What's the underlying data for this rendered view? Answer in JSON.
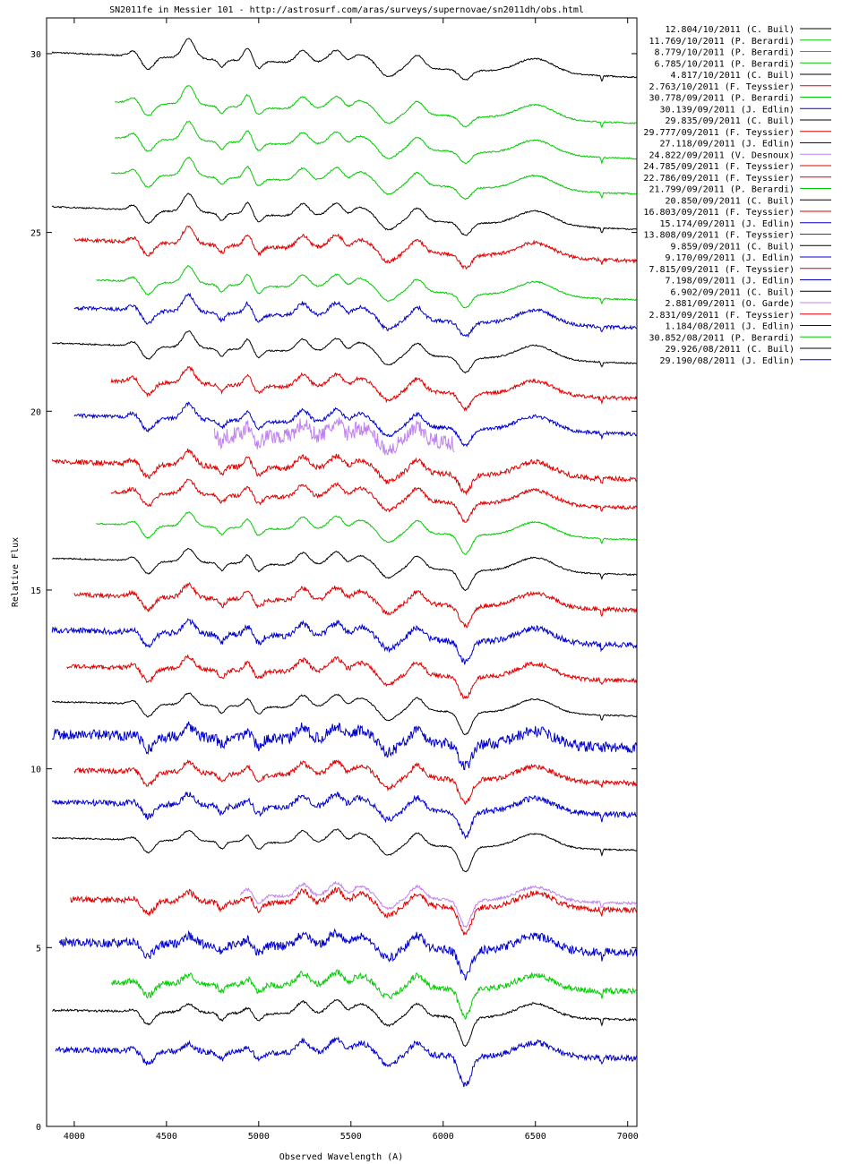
{
  "chart_data": {
    "type": "line",
    "title": "SN2011fe in Messier 101  -  http://astrosurf.com/aras/surveys/supernovae/sn2011dh/obs.html",
    "xlabel": "Observed Wavelength (A)",
    "ylabel": "Relative Flux",
    "xlim": [
      3850,
      7050
    ],
    "ylim": [
      0,
      31
    ],
    "x_ticks": [
      4000,
      4500,
      5000,
      5500,
      6000,
      6500,
      7000
    ],
    "y_ticks": [
      0,
      5,
      10,
      15,
      20,
      25,
      30
    ],
    "grid": false,
    "legend_position": "outside-top-right",
    "colors": {
      "black": "#000000",
      "green": "#00cc00",
      "red": "#e00000",
      "blue": "#0000cc",
      "violet": "#c080f0"
    },
    "series": [
      {
        "name": "12.804/10/2011 (C. Buil)",
        "color": "#000000",
        "offset": 29.7,
        "x_start": 3880,
        "x_end": 7050,
        "noise": 0.02
      },
      {
        "name": "11.769/10/2011 (P. Berardi)",
        "color": "#00cc00",
        "offset": 28.4,
        "x_start": 4220,
        "x_end": 7050,
        "noise": 0.02
      },
      {
        "name": "8.779/10/2011 (P. Berardi)",
        "color": "#00cc00",
        "offset": 27.4,
        "x_start": 4220,
        "x_end": 7050,
        "noise": 0.02
      },
      {
        "name": "6.785/10/2011 (P. Berardi)",
        "color": "#00cc00",
        "offset": 26.4,
        "x_start": 4200,
        "x_end": 7050,
        "noise": 0.02
      },
      {
        "name": "4.817/10/2011 (C. Buil)",
        "color": "#000000",
        "offset": 25.4,
        "x_start": 3880,
        "x_end": 7050,
        "noise": 0.02
      },
      {
        "name": "2.763/10/2011 (F. Teyssier)",
        "color": "#e00000",
        "offset": 24.5,
        "x_start": 4000,
        "x_end": 7050,
        "noise": 0.05
      },
      {
        "name": "30.778/09/2011 (P. Berardi)",
        "color": "#00cc00",
        "offset": 23.4,
        "x_start": 4120,
        "x_end": 7050,
        "noise": 0.02
      },
      {
        "name": "30.139/09/2011 (J. Edlin)",
        "color": "#0000cc",
        "offset": 22.6,
        "x_start": 4000,
        "x_end": 7050,
        "noise": 0.05
      },
      {
        "name": "29.835/09/2011 (C. Buil)",
        "color": "#000000",
        "offset": 21.6,
        "x_start": 3880,
        "x_end": 7050,
        "noise": 0.02
      },
      {
        "name": "29.777/09/2011 (F. Teyssier)",
        "color": "#e00000",
        "offset": 20.6,
        "x_start": 4200,
        "x_end": 7050,
        "noise": 0.05
      },
      {
        "name": "27.118/09/2011 (J. Edlin)",
        "color": "#0000cc",
        "offset": 19.6,
        "x_start": 4000,
        "x_end": 7050,
        "noise": 0.05
      },
      {
        "name": "24.822/09/2011 (V. Desnoux)",
        "color": "#c080f0",
        "offset": 19.2,
        "x_start": 4760,
        "x_end": 6060,
        "noise": 0.22
      },
      {
        "name": "24.785/09/2011 (F. Teyssier)",
        "color": "#e00000",
        "offset": 18.3,
        "x_start": 3880,
        "x_end": 7050,
        "noise": 0.07
      },
      {
        "name": "22.786/09/2011 (F. Teyssier)",
        "color": "#e00000",
        "offset": 17.5,
        "x_start": 4200,
        "x_end": 7050,
        "noise": 0.05
      },
      {
        "name": "21.799/09/2011 (P. Berardi)",
        "color": "#00cc00",
        "offset": 16.6,
        "x_start": 4120,
        "x_end": 7050,
        "noise": 0.02
      },
      {
        "name": "20.850/09/2011 (C. Buil)",
        "color": "#000000",
        "offset": 15.6,
        "x_start": 3880,
        "x_end": 7050,
        "noise": 0.02
      },
      {
        "name": "16.803/09/2011 (F. Teyssier)",
        "color": "#e00000",
        "offset": 14.6,
        "x_start": 4000,
        "x_end": 7050,
        "noise": 0.06
      },
      {
        "name": "15.174/09/2011 (J. Edlin)",
        "color": "#0000cc",
        "offset": 13.6,
        "x_start": 3880,
        "x_end": 7050,
        "noise": 0.08
      },
      {
        "name": "13.808/09/2011 (F. Teyssier)",
        "color": "#e00000",
        "offset": 12.6,
        "x_start": 3960,
        "x_end": 7050,
        "noise": 0.06
      },
      {
        "name": "9.859/09/2011 (C. Buil)",
        "color": "#000000",
        "offset": 11.6,
        "x_start": 3880,
        "x_end": 7050,
        "noise": 0.02
      },
      {
        "name": "9.170/09/2011 (J. Edlin)",
        "color": "#0000cc",
        "offset": 10.7,
        "x_start": 3880,
        "x_end": 7050,
        "noise": 0.15
      },
      {
        "name": "7.815/09/2011 (F. Teyssier)",
        "color": "#e00000",
        "offset": 9.7,
        "x_start": 4000,
        "x_end": 7050,
        "noise": 0.07
      },
      {
        "name": "7.198/09/2011 (J. Edlin)",
        "color": "#0000cc",
        "offset": 8.8,
        "x_start": 3880,
        "x_end": 7050,
        "noise": 0.08
      },
      {
        "name": "6.902/09/2011 (C. Buil)",
        "color": "#000000",
        "offset": 7.8,
        "x_start": 3880,
        "x_end": 7050,
        "noise": 0.02
      },
      {
        "name": "2.881/09/2011 (O. Garde)",
        "color": "#c080f0",
        "offset": 6.3,
        "x_start": 4900,
        "x_end": 7050,
        "noise": 0.04
      },
      {
        "name": "2.831/09/2011 (F. Teyssier)",
        "color": "#e00000",
        "offset": 6.1,
        "x_start": 3980,
        "x_end": 7050,
        "noise": 0.08
      },
      {
        "name": "1.184/08/2011 (J. Edlin)",
        "color": "#0000cc",
        "offset": 4.9,
        "x_start": 3920,
        "x_end": 7050,
        "noise": 0.12
      },
      {
        "name": "30.852/08/2011 (P. Berardi)",
        "color": "#00cc00",
        "offset": 3.8,
        "x_start": 4200,
        "x_end": 7050,
        "noise": 0.08
      },
      {
        "name": "29.926/08/2011 (C. Buil)",
        "color": "#000000",
        "offset": 3.0,
        "x_start": 3880,
        "x_end": 7050,
        "noise": 0.03
      },
      {
        "name": "29.190/08/2011 (J. Edlin)",
        "color": "#0000cc",
        "offset": 1.9,
        "x_start": 3900,
        "x_end": 7050,
        "noise": 0.08
      }
    ]
  }
}
